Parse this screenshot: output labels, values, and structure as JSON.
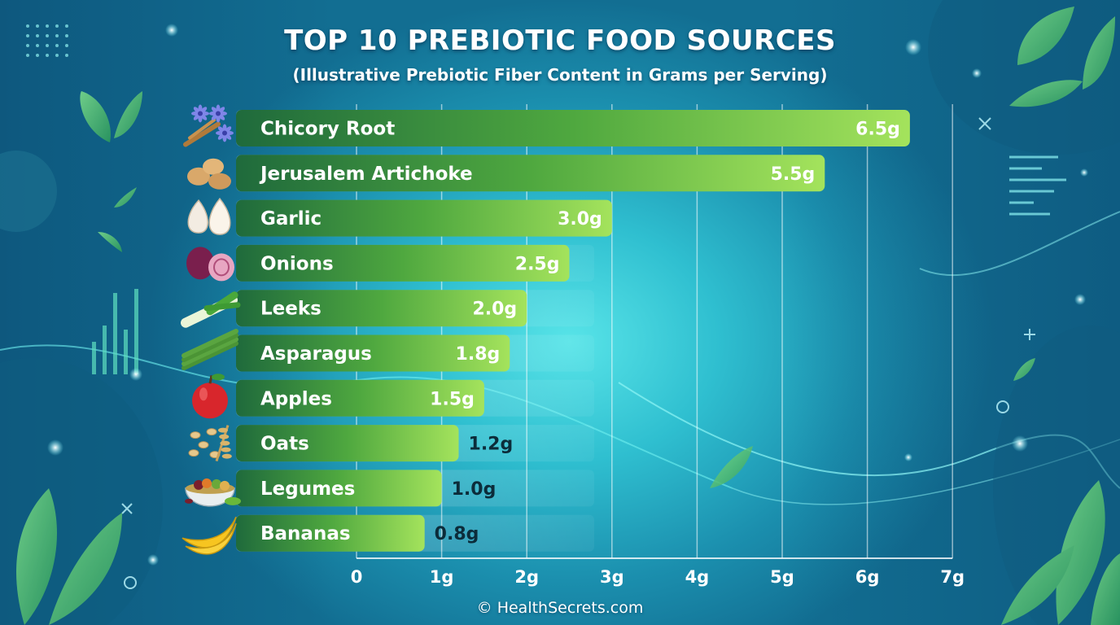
{
  "title": "TOP 10 PREBIOTIC FOOD SOURCES",
  "subtitle": "(Illustrative Prebiotic Fiber Content in Grams per Serving)",
  "footer": "© HealthSecrets.com",
  "colors": {
    "bar_dark": "#1f6a3c",
    "bar_light": "#9fe05a",
    "background_center": "#58e4e8",
    "background_edge": "#126e92"
  },
  "chart_data": {
    "type": "bar",
    "orientation": "horizontal",
    "categories": [
      "Chicory Root",
      "Jerusalem Artichoke",
      "Garlic",
      "Onions",
      "Leeks",
      "Asparagus",
      "Apples",
      "Oats",
      "Legumes",
      "Bananas"
    ],
    "values": [
      6.5,
      5.5,
      3.0,
      2.5,
      2.0,
      1.8,
      1.5,
      1.2,
      1.0,
      0.8
    ],
    "value_labels": [
      "6.5g",
      "5.5g",
      "3.0g",
      "2.5g",
      "2.0g",
      "1.8g",
      "1.5g",
      "1.2g",
      "1.0g",
      "0.8g"
    ],
    "icons": [
      "chicory-root-icon",
      "jerusalem-artichoke-icon",
      "garlic-icon",
      "onion-icon",
      "leek-icon",
      "asparagus-icon",
      "apple-icon",
      "oats-icon",
      "legumes-icon",
      "banana-icon"
    ],
    "xlim": [
      0,
      7
    ],
    "xticks": [
      "0",
      "1g",
      "2g",
      "3g",
      "4g",
      "5g",
      "6g",
      "7g"
    ],
    "grid": true
  }
}
